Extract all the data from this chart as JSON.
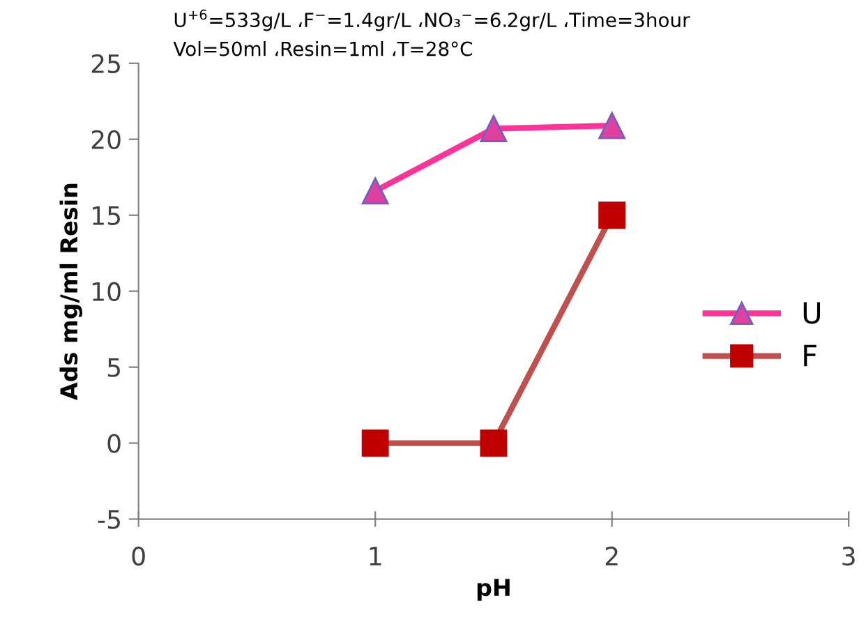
{
  "chart_data": {
    "type": "line",
    "xlabel": "pH",
    "ylabel": "Ads mg/ml Resin",
    "annotations": [
      "U$^{+6}$=533g/L ،F$^{−}$=1.4gr/L ،NO₃$^{−}$=6.2gr/L ،Time=3hour",
      "Vol=50ml ،Resin=1ml ،T=28°C"
    ],
    "x": [
      1,
      1.5,
      2
    ],
    "series": [
      {
        "name": "U",
        "color": "#ff3399",
        "marker": "triangle",
        "values": [
          16.6,
          20.7,
          20.9
        ]
      },
      {
        "name": "F",
        "color": "#c0504d",
        "marker": "square",
        "values": [
          0,
          0,
          15
        ]
      }
    ],
    "xlim": [
      0,
      3
    ],
    "xticks": [
      0,
      1,
      2,
      3
    ],
    "ylim": [
      -5,
      25
    ],
    "yticks": [
      -5,
      0,
      5,
      10,
      15,
      20,
      25
    ],
    "grid": false,
    "legend": "right",
    "line_style": "solid"
  }
}
